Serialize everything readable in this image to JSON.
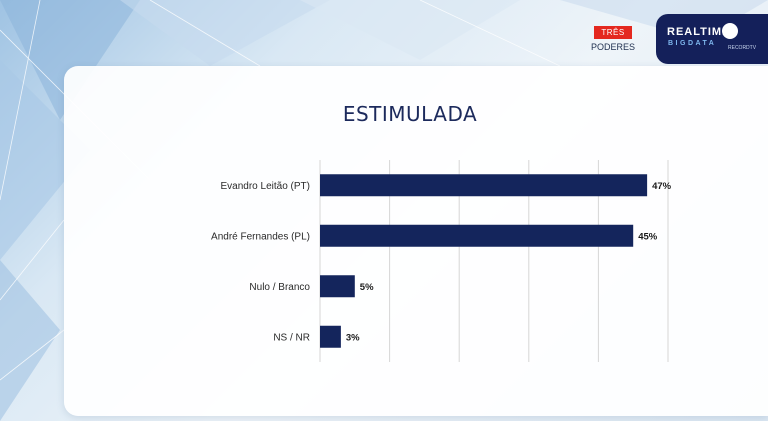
{
  "branding": {
    "tres": "TRÊS",
    "poderes": "PODERES",
    "realtime": "REALTIME",
    "bigdata": "BIGDATA",
    "record": "RECORDTV"
  },
  "colors": {
    "bar": "#14255c",
    "grid": "#d6d6d6"
  },
  "chart_data": {
    "type": "bar",
    "orientation": "horizontal",
    "title": "ESTIMULADA",
    "categories": [
      "Evandro Leitão (PT)",
      "André Fernandes (PL)",
      "Nulo / Branco",
      "NS / NR"
    ],
    "values": [
      47,
      45,
      5,
      3
    ],
    "data_labels": [
      "47%",
      "45%",
      "5%",
      "3%"
    ],
    "xlim": [
      0,
      50
    ],
    "grid": true,
    "legend": "none"
  }
}
